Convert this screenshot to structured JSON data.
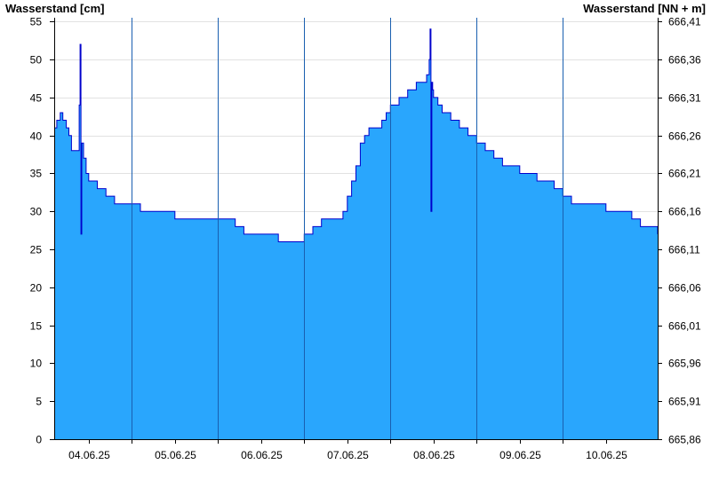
{
  "chart_data": {
    "type": "area",
    "ylabel_left": "Wasserstand [cm]",
    "ylabel_right": "Wasserstand [NN + m]",
    "ylim": [
      0,
      55.5
    ],
    "yticks_left": [
      0,
      5,
      10,
      15,
      20,
      25,
      30,
      35,
      40,
      45,
      50,
      55
    ],
    "yticks_right": [
      "665,86",
      "665,91",
      "665,96",
      "666,01",
      "666,06",
      "666,11",
      "666,16",
      "666,21",
      "666,26",
      "666,31",
      "666,36",
      "666,41"
    ],
    "xlim": [
      3.6,
      10.6
    ],
    "xticks": [
      {
        "x": 4.0,
        "label": "04.06.25"
      },
      {
        "x": 5.0,
        "label": "05.06.25"
      },
      {
        "x": 6.0,
        "label": "06.06.25"
      },
      {
        "x": 7.0,
        "label": "07.06.25"
      },
      {
        "x": 8.0,
        "label": "08.06.25"
      },
      {
        "x": 9.0,
        "label": "09.06.25"
      },
      {
        "x": 10.0,
        "label": "10.06.25"
      }
    ],
    "day_boundaries": [
      4.5,
      5.5,
      6.5,
      7.5,
      8.5,
      9.5
    ],
    "grid": true,
    "fill_color": "#29a6fd",
    "line_color": "#0000cc",
    "series": [
      {
        "x": [
          3.6,
          3.63,
          3.67,
          3.7,
          3.74,
          3.77,
          3.8,
          3.88,
          3.89,
          3.9,
          3.91,
          3.92,
          3.94,
          3.97,
          4.0,
          4.05,
          4.1,
          4.15,
          4.2,
          4.25,
          4.3,
          4.4,
          4.5,
          4.6,
          4.7,
          4.8,
          5.0,
          5.2,
          5.4,
          5.55,
          5.7,
          5.8,
          6.0,
          6.2,
          6.45,
          6.5,
          6.55,
          6.6,
          6.7,
          6.9,
          6.95,
          7.0,
          7.05,
          7.1,
          7.15,
          7.2,
          7.25,
          7.3,
          7.4,
          7.45,
          7.5,
          7.6,
          7.7,
          7.8,
          7.88,
          7.92,
          7.95,
          7.96,
          7.97,
          7.98,
          7.99,
          8.0,
          8.02,
          8.05,
          8.1,
          8.2,
          8.3,
          8.4,
          8.5,
          8.6,
          8.7,
          8.8,
          9.0,
          9.2,
          9.4,
          9.5,
          9.6,
          9.7,
          9.8,
          9.9,
          10.0,
          10.1,
          10.2,
          10.3,
          10.4,
          10.5,
          10.6
        ],
        "values": [
          41,
          42,
          43,
          42,
          41,
          40,
          38,
          38,
          44,
          52,
          27,
          39,
          37,
          35,
          34,
          34,
          33,
          33,
          32,
          32,
          31,
          31,
          31,
          30,
          30,
          30,
          29,
          29,
          29,
          29,
          28,
          27,
          27,
          26,
          26,
          27,
          27,
          28,
          29,
          29,
          30,
          32,
          34,
          36,
          39,
          40,
          41,
          41,
          42,
          43,
          44,
          45,
          46,
          47,
          47,
          48,
          50,
          54,
          30,
          47,
          46,
          45,
          45,
          44,
          43,
          42,
          41,
          40,
          39,
          38,
          37,
          36,
          35,
          34,
          33,
          32,
          31,
          31,
          31,
          31,
          30,
          30,
          30,
          29,
          28,
          28,
          27
        ]
      }
    ]
  }
}
